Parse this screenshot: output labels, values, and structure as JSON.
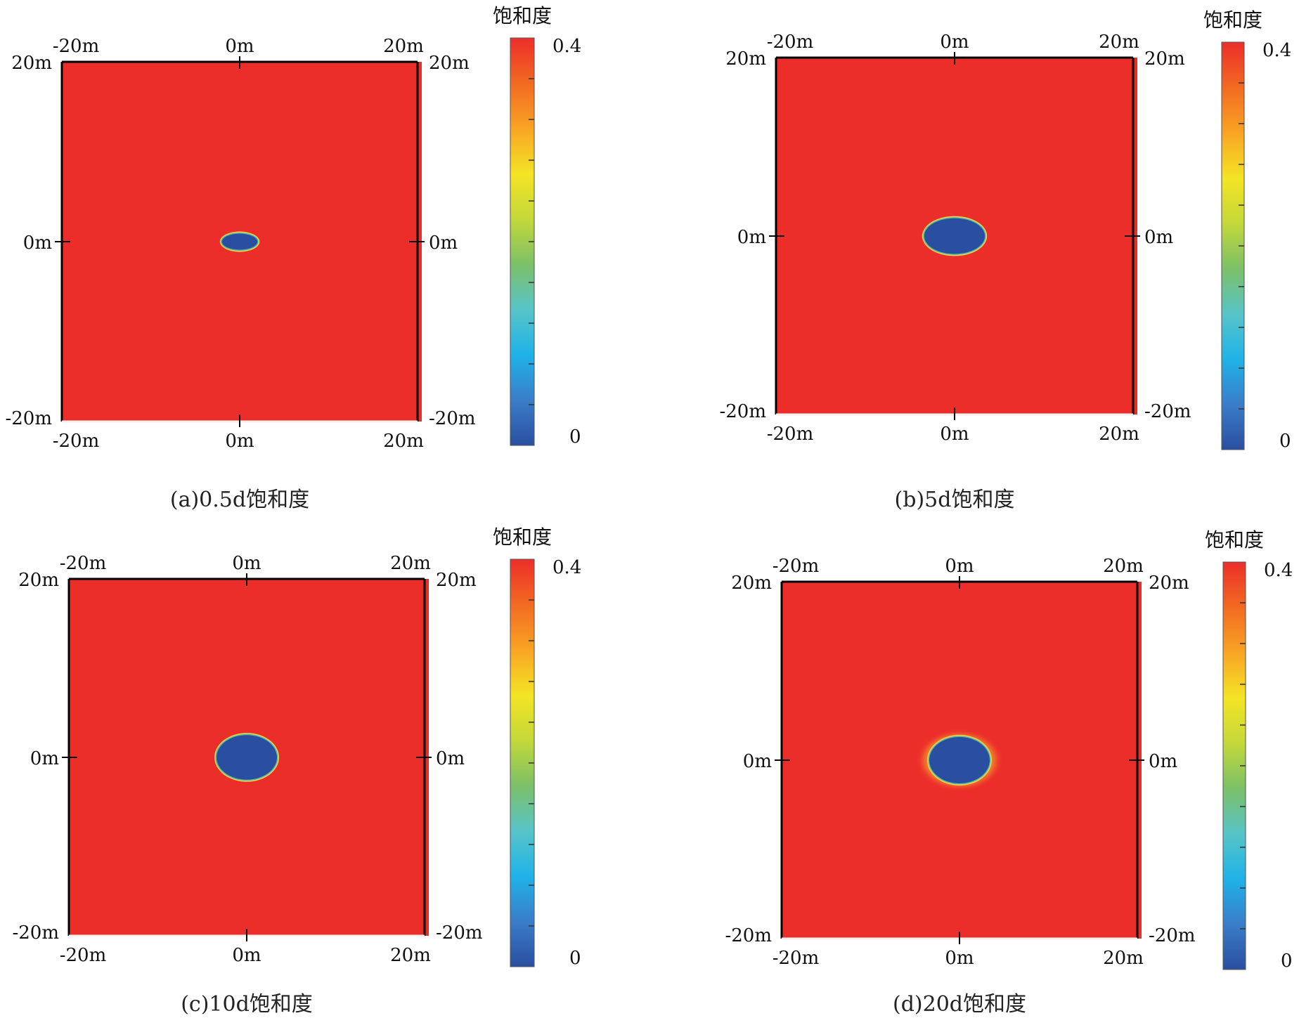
{
  "figure": {
    "colorbar_stops": [
      "#2a4fa0",
      "#3a7dc8",
      "#1fb2e8",
      "#58c4c8",
      "#7cc068",
      "#c4d83a",
      "#f4e425",
      "#f9a425",
      "#f26a22",
      "#ec2e2a"
    ],
    "field_color": "#ec2e2a",
    "plume_color": "#2a4fa0",
    "frame_color": "#000000"
  },
  "chart_data": [
    {
      "type": "heatmap",
      "panel": "a",
      "caption": "(a)0.5d饱和度",
      "colorbar_title": "饱和度",
      "colorbar_range": [
        0,
        0.4
      ],
      "colorbar_ticks": [
        "0.4",
        "0"
      ],
      "xlim": [
        -20,
        20
      ],
      "ylim": [
        -20,
        20
      ],
      "x_ticks": [
        "-20m",
        "0m",
        "20m"
      ],
      "y_ticks": [
        "20m",
        "0m",
        "-20m"
      ],
      "background_value": 0.4,
      "plume": {
        "center": [
          0,
          0
        ],
        "half_width": 2.0,
        "half_height": 0.9,
        "value": 0,
        "halo": false
      }
    },
    {
      "type": "heatmap",
      "panel": "b",
      "caption": "(b)5d饱和度",
      "colorbar_title": "饱和度",
      "colorbar_range": [
        0,
        0.4
      ],
      "colorbar_ticks": [
        "0.4",
        "0"
      ],
      "xlim": [
        -20,
        20
      ],
      "ylim": [
        -20,
        20
      ],
      "x_ticks": [
        "-20m",
        "0m",
        "20m"
      ],
      "y_ticks": [
        "20m",
        "0m",
        "-20m"
      ],
      "background_value": 0.4,
      "plume": {
        "center": [
          0,
          0
        ],
        "half_width": 3.4,
        "half_height": 2.0,
        "value": 0,
        "halo": false
      }
    },
    {
      "type": "heatmap",
      "panel": "c",
      "caption": "(c)10d饱和度",
      "colorbar_title": "饱和度",
      "colorbar_range": [
        0,
        0.4
      ],
      "colorbar_ticks": [
        "0.4",
        "0"
      ],
      "xlim": [
        -20,
        20
      ],
      "ylim": [
        -20,
        20
      ],
      "x_ticks": [
        "-20m",
        "0m",
        "20m"
      ],
      "y_ticks": [
        "20m",
        "0m",
        "-20m"
      ],
      "background_value": 0.4,
      "plume": {
        "center": [
          0,
          0
        ],
        "half_width": 3.4,
        "half_height": 2.5,
        "value": 0,
        "halo": false
      }
    },
    {
      "type": "heatmap",
      "panel": "d",
      "caption": "(d)20d饱和度",
      "colorbar_title": "饱和度",
      "colorbar_range": [
        0,
        0.4
      ],
      "colorbar_ticks": [
        "0.4",
        "0"
      ],
      "xlim": [
        -20,
        20
      ],
      "ylim": [
        -20,
        20
      ],
      "x_ticks": [
        "-20m",
        "0m",
        "20m"
      ],
      "y_ticks": [
        "20m",
        "0m",
        "-20m"
      ],
      "background_value": 0.4,
      "plume": {
        "center": [
          0,
          0
        ],
        "half_width": 3.4,
        "half_height": 2.6,
        "value": 0,
        "halo": true
      }
    }
  ]
}
